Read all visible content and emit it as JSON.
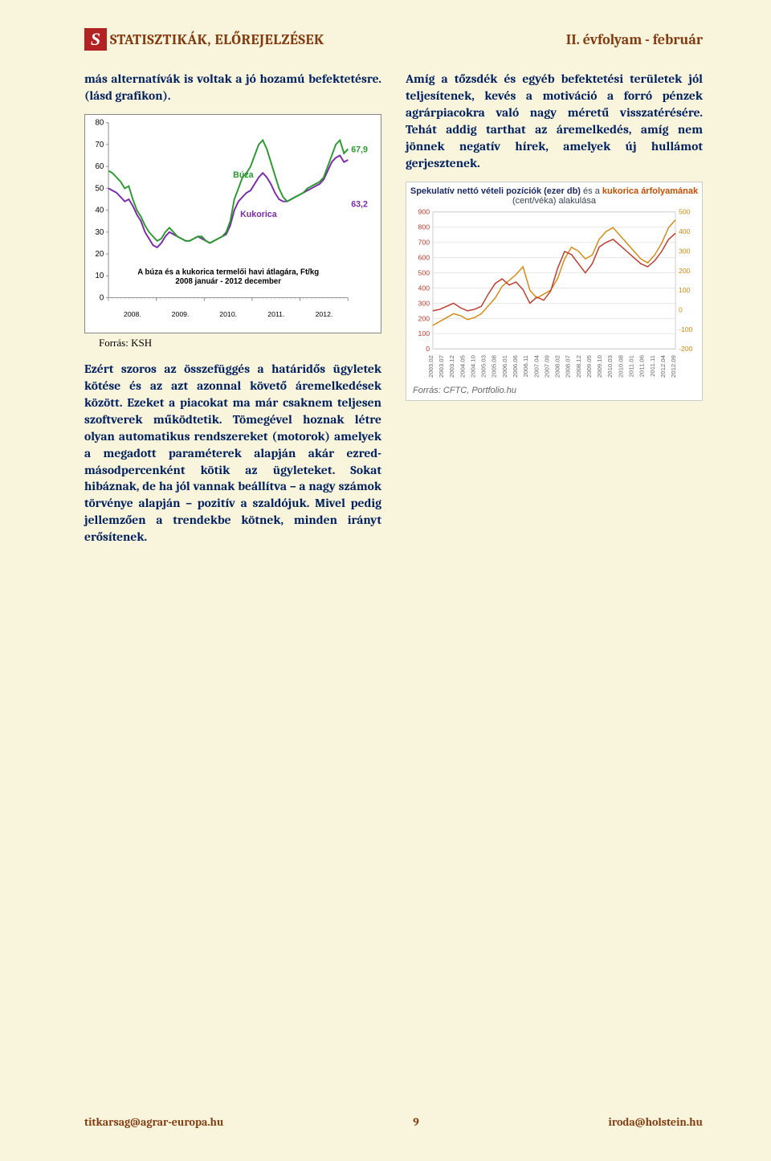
{
  "header": {
    "left_title": "STATISZTIKÁK, ELŐREJELZÉSEK",
    "right_title": "II. évfolyam - február"
  },
  "left_col": {
    "intro": "más alternatívák is voltak a jó hozamú befektetésre. (lásd grafikon).",
    "source_label": "Forrás: KSH",
    "para2": "Ezért szoros az összefüggés a határidős ügyletek kötése és az azt azonnal követő áremelkedések között. Ezeket a piacokat ma már csaknem teljesen szoftverek működtetik. Tömegével hoznak létre olyan automatikus rendszereket (motorok) amelyek a megadott paraméterek alapján akár ezred-másodpercenként kötik az ügyleteket. Sokat hibáznak, de ha jól vannak beállítva – a nagy számok törvénye alapján – pozitív a szaldójuk. Mivel pedig jellemzően a trendekbe kötnek, minden irányt erősítenek."
  },
  "right_col": {
    "para1": "Amíg a tőzsdék és egyéb befektetési területek jól teljesítenek, kevés a motiváció a forró pénzek agrárpiacokra való nagy méretű visszatérésére. Tehát addig tarthat az áremelkedés, amíg nem jönnek negatív hírek, amelyek új hullámot gerjesztenek."
  },
  "chart1": {
    "type": "line",
    "caption_line1": "A búza és a kukorica termelői havi átlagára, Ft/kg",
    "caption_line2": "2008 január - 2012 december",
    "ylim": [
      0,
      80
    ],
    "ytick_step": 10,
    "y_ticks": [
      0,
      10,
      20,
      30,
      40,
      50,
      60,
      70,
      80
    ],
    "x_years": [
      "2008.",
      "2009.",
      "2010.",
      "2011.",
      "2012."
    ],
    "n_points": 60,
    "series": {
      "buza": {
        "label": "Búza",
        "label_color": "#2a9a2f",
        "color": "#2a9a2f",
        "line_width": 2,
        "end_value_label": "67,9",
        "data": [
          58,
          57,
          55,
          53,
          50,
          51,
          45,
          40,
          37,
          33,
          30,
          28,
          26,
          27,
          30,
          32,
          30,
          28,
          27,
          26,
          26,
          27,
          28,
          28,
          26,
          25,
          26,
          27,
          28,
          30,
          35,
          45,
          50,
          55,
          57,
          60,
          65,
          70,
          72,
          68,
          62,
          56,
          50,
          46,
          44,
          45,
          46,
          47,
          48,
          50,
          51,
          52,
          53,
          55,
          60,
          65,
          70,
          72,
          66,
          68
        ]
      },
      "kukorica": {
        "label": "Kukorica",
        "label_color": "#7a2aa8",
        "color": "#7a2aa8",
        "line_width": 2,
        "end_value_label": "63,2",
        "data": [
          50,
          49,
          48,
          46,
          44,
          45,
          42,
          38,
          35,
          30,
          27,
          24,
          23,
          25,
          28,
          30,
          29,
          28,
          27,
          26,
          26,
          27,
          28,
          27,
          26,
          25,
          26,
          27,
          28,
          29,
          33,
          40,
          44,
          46,
          48,
          49,
          52,
          55,
          57,
          55,
          52,
          48,
          45,
          44,
          44,
          45,
          46,
          47,
          48,
          49,
          50,
          51,
          52,
          54,
          58,
          62,
          64,
          65,
          62,
          63
        ]
      }
    },
    "background_color": "#ffffff",
    "grid": false,
    "axis_color": "#888888"
  },
  "chart2": {
    "type": "dual-axis-line",
    "title_parts": {
      "prefix": "Spekulatív nettó vételi pozíciók (ezer db)",
      "middle": " és a ",
      "corn": "kukorica árfolyamának",
      "suffix_line2": "(cent/véka) alakulása"
    },
    "left_axis": {
      "label": "ezer db",
      "ticks": [
        0,
        100,
        200,
        300,
        400,
        500,
        600,
        700,
        800,
        900
      ],
      "lim": [
        0,
        900
      ],
      "color": "#c0392b"
    },
    "right_axis": {
      "label": "cent/véka",
      "ticks": [
        -200,
        -100,
        0,
        100,
        200,
        300,
        400,
        500
      ],
      "lim": [
        -200,
        500
      ],
      "color": "#d68910"
    },
    "x_labels": [
      "2003.02",
      "2003.07",
      "2003.12",
      "2004.05",
      "2004.10",
      "2005.03",
      "2005.08",
      "2006.01",
      "2006.06",
      "2006.11",
      "2007.04",
      "2007.09",
      "2008.02",
      "2008.07",
      "2008.12",
      "2009.05",
      "2009.10",
      "2010.03",
      "2010.08",
      "2011.01",
      "2011.06",
      "2011.11",
      "2012.04",
      "2012.09"
    ],
    "series": {
      "positions": {
        "color": "#c0392b",
        "line_width": 1.5,
        "data": [
          250,
          260,
          280,
          300,
          270,
          250,
          260,
          280,
          360,
          430,
          460,
          420,
          440,
          390,
          300,
          340,
          320,
          380,
          530,
          640,
          620,
          560,
          500,
          560,
          670,
          700,
          720,
          680,
          640,
          600,
          560,
          540,
          580,
          640,
          720,
          760
        ]
      },
      "price": {
        "color": "#d68910",
        "line_width": 1.5,
        "data": [
          -80,
          -60,
          -40,
          -20,
          -30,
          -50,
          -40,
          -20,
          20,
          60,
          120,
          150,
          180,
          220,
          100,
          60,
          80,
          100,
          160,
          260,
          320,
          300,
          260,
          280,
          360,
          400,
          420,
          380,
          340,
          300,
          260,
          240,
          280,
          340,
          420,
          460
        ]
      }
    },
    "source_label": "Forrás: CFTC, Portfolio.hu",
    "background_color": "#ffffff",
    "grid_color": "#e5e5e5"
  },
  "footer": {
    "left": "titkarsag@agrar-europa.hu",
    "page": "9",
    "right": "iroda@holstein.hu"
  }
}
